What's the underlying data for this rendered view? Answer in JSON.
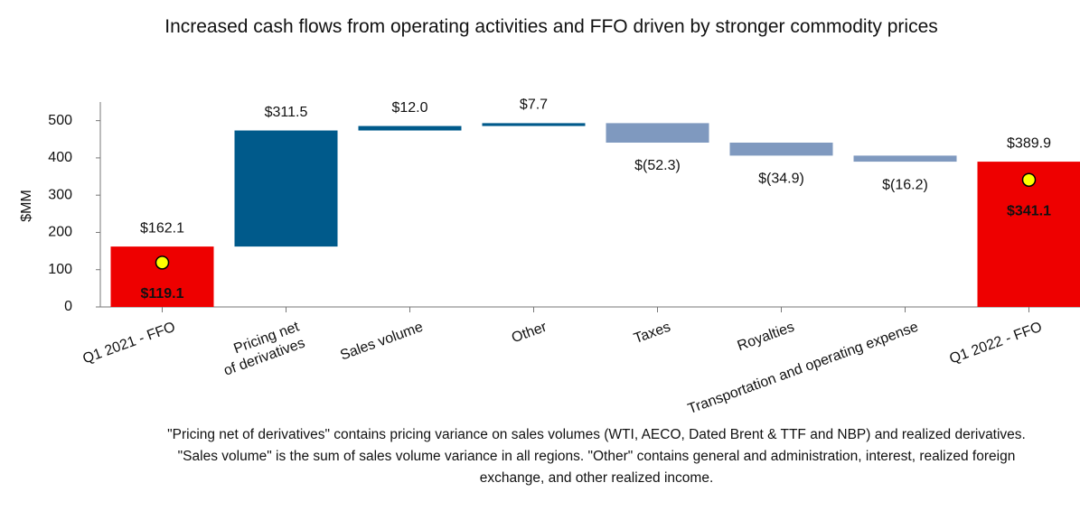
{
  "chart_data": {
    "type": "waterfall",
    "title": "Increased cash flows from operating activities and FFO driven by stronger commodity prices",
    "y_label": "$MM",
    "categories": [
      "Q1 2021 - FFO",
      "Pricing net\nof derivatives",
      "Sales volume",
      "Other",
      "Taxes",
      "Royalties",
      "Transportation and operating expense",
      "Q1 2022 - FFO"
    ],
    "values": [
      162.1,
      311.5,
      12.0,
      7.7,
      -52.3,
      -34.9,
      -16.2,
      389.9
    ],
    "value_labels": [
      "$162.1",
      "$311.5",
      "$12.0",
      "$7.7",
      "$(52.3)",
      "$(34.9)",
      "$(16.2)",
      "$389.9"
    ],
    "measure": [
      "total",
      "relative",
      "relative",
      "relative",
      "relative",
      "relative",
      "relative",
      "total"
    ],
    "colors": {
      "total": "#ee0000",
      "increase": "#005a8b",
      "decrease": "#7f99bf"
    },
    "points": {
      "values": [
        119.1,
        null,
        null,
        null,
        null,
        null,
        null,
        341.1
      ],
      "value_labels": [
        "$119.1",
        null,
        null,
        null,
        null,
        null,
        null,
        "$341.1"
      ],
      "color": "#ffff00"
    },
    "ylim": [
      0,
      550
    ],
    "yticks": [
      0,
      100,
      200,
      300,
      400,
      500
    ],
    "footnote": "\"Pricing net of derivatives\" contains pricing variance on sales volumes (WTI, AECO, Dated Brent & TTF and NBP) and realized derivatives. \"Sales volume\" is the sum of sales volume variance in all regions. \"Other\" contains general and administration, interest, realized foreign exchange, and other realized income."
  }
}
